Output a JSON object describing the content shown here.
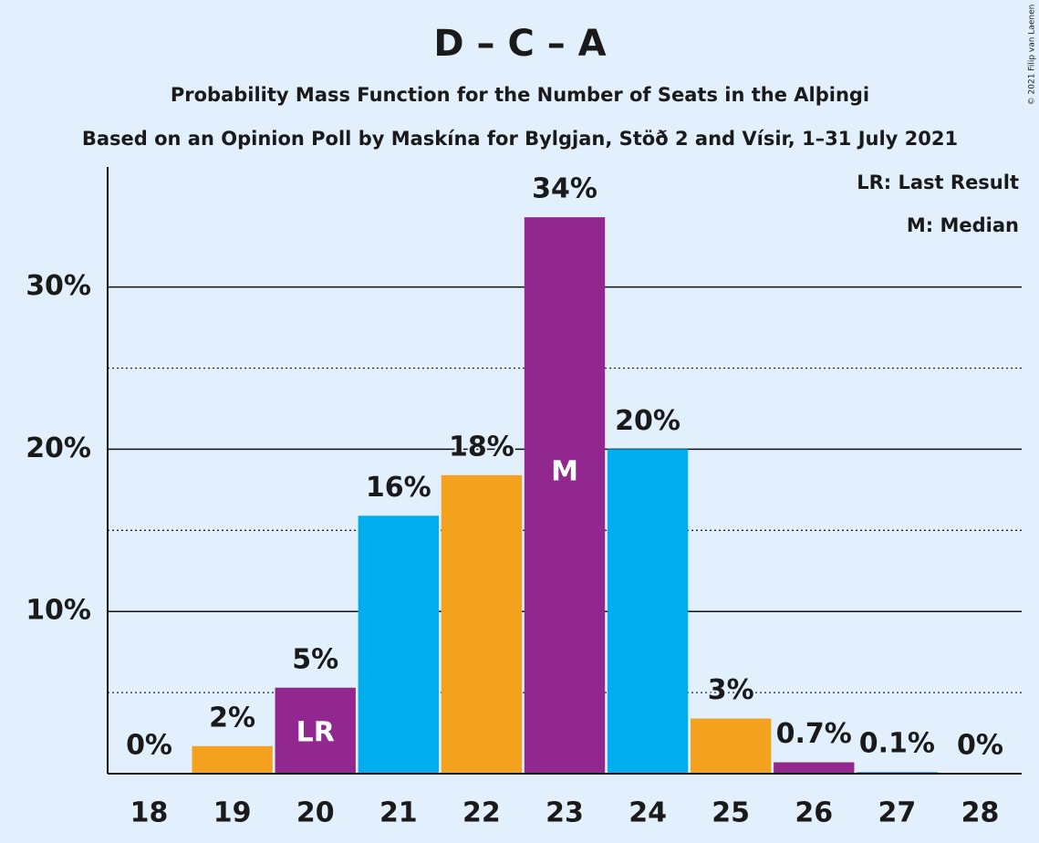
{
  "chart_data": {
    "type": "bar",
    "title": "D – C – A",
    "subtitle": "Probability Mass Function for the Number of Seats in the Alþingi",
    "subtitle2": "Based on an Opinion Poll by Maskína for Bylgjan, Stöð 2 and Vísir, 1–31 July 2021",
    "categories": [
      "18",
      "19",
      "20",
      "21",
      "22",
      "23",
      "24",
      "25",
      "26",
      "27",
      "28"
    ],
    "values": [
      0,
      1.7,
      5.3,
      15.9,
      18.4,
      34.3,
      20.0,
      3.4,
      0.7,
      0.1,
      0
    ],
    "value_labels": [
      "0%",
      "2%",
      "5%",
      "16%",
      "18%",
      "34%",
      "20%",
      "3%",
      "0.7%",
      "0.1%",
      "0%"
    ],
    "colors": [
      "#00aeef",
      "#f4a21d",
      "#92278f",
      "#00aeef",
      "#f4a21d",
      "#92278f",
      "#00aeef",
      "#f4a21d",
      "#92278f",
      "#00aeef",
      "#f4a21d"
    ],
    "ylim": [
      0,
      37.4
    ],
    "yticks": [
      {
        "value": 10,
        "label": "10%"
      },
      {
        "value": 20,
        "label": "20%"
      },
      {
        "value": 30,
        "label": "30%"
      }
    ],
    "minor_gridlines": [
      5,
      15,
      25
    ],
    "grid": true,
    "bar_annotations": [
      {
        "category": "20",
        "text": "LR"
      },
      {
        "category": "23",
        "text": "M"
      }
    ],
    "legend": [
      "LR: Last Result",
      "M: Median"
    ],
    "copyright": "© 2021 Filip van Laenen"
  }
}
